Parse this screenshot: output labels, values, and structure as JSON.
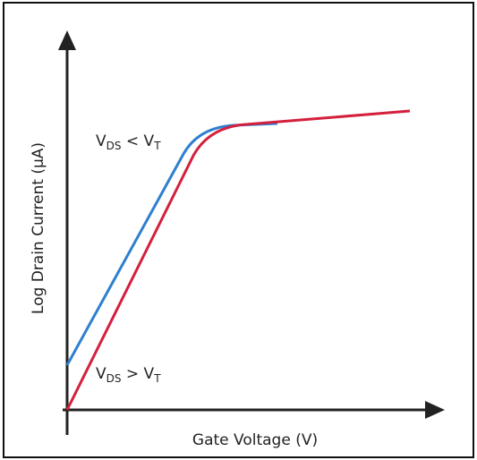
{
  "axes": {
    "x_label": "Gate Voltage (V)",
    "y_label": "Log Drain Current (μA)"
  },
  "annotations": [
    {
      "parts": [
        "V",
        "DS",
        " < V",
        "T"
      ]
    },
    {
      "parts": [
        "V",
        "DS",
        " > V",
        "T"
      ]
    }
  ]
}
